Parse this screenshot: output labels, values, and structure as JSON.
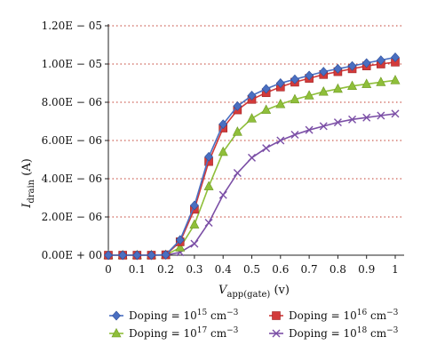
{
  "chart_data": {
    "type": "line",
    "xlabel": {
      "main": "V",
      "sub": "app(gate)",
      "unit": " (v)"
    },
    "ylabel": {
      "main": "I",
      "sub": "drain",
      "unit": " (A)"
    },
    "xlim": [
      0,
      1
    ],
    "ylim": [
      0,
      1.2e-05
    ],
    "x_ticks": [
      "0",
      "0.1",
      "0.2",
      "0.3",
      "0.4",
      "0.5",
      "0.6",
      "0.7",
      "0.8",
      "0.9",
      "1"
    ],
    "y_ticks": [
      "0.00E + 00",
      "2.00E − 06",
      "4.00E − 06",
      "6.00E − 06",
      "8.00E − 06",
      "1.00E − 05",
      "1.20E − 05"
    ],
    "grid": "horizontal dotted",
    "legend_position": "bottom",
    "x": [
      0,
      0.05,
      0.1,
      0.15,
      0.2,
      0.25,
      0.3,
      0.35,
      0.4,
      0.45,
      0.5,
      0.55,
      0.6,
      0.65,
      0.7,
      0.75,
      0.8,
      0.85,
      0.9,
      0.95,
      1.0
    ],
    "series": [
      {
        "name": "Doping = 10",
        "exp": "15",
        "unit": " cm",
        "unit_exp": "−3",
        "color": "#4a6fc1",
        "marker": "diamond",
        "values": [
          0,
          0,
          0,
          0,
          2e-08,
          8e-07,
          2.6e-06,
          5.15e-06,
          6.85e-06,
          7.8e-06,
          8.35e-06,
          8.7e-06,
          9e-06,
          9.2e-06,
          9.4e-06,
          9.6e-06,
          9.75e-06,
          9.9e-06,
          1.005e-05,
          1.02e-05,
          1.035e-05
        ]
      },
      {
        "name": "Doping = 10",
        "exp": "16",
        "unit": " cm",
        "unit_exp": "−3",
        "color": "#d23a3a",
        "marker": "square",
        "values": [
          0,
          0,
          0,
          0,
          2e-08,
          7e-07,
          2.4e-06,
          4.9e-06,
          6.65e-06,
          7.6e-06,
          8.15e-06,
          8.5e-06,
          8.8e-06,
          9.05e-06,
          9.25e-06,
          9.45e-06,
          9.6e-06,
          9.75e-06,
          9.9e-06,
          1e-05,
          1.01e-05
        ]
      },
      {
        "name": "Doping = 10",
        "exp": "17",
        "unit": " cm",
        "unit_exp": "−3",
        "color": "#8fbf3a",
        "marker": "triangle",
        "values": [
          0,
          0,
          0,
          0,
          1e-08,
          4e-07,
          1.6e-06,
          3.6e-06,
          5.4e-06,
          6.45e-06,
          7.15e-06,
          7.6e-06,
          7.9e-06,
          8.15e-06,
          8.35e-06,
          8.55e-06,
          8.7e-06,
          8.85e-06,
          8.95e-06,
          9.05e-06,
          9.15e-06
        ]
      },
      {
        "name": "Doping = 10",
        "exp": "18",
        "unit": " cm",
        "unit_exp": "−3",
        "color": "#7b4fa6",
        "marker": "x",
        "values": [
          0,
          0,
          0,
          0,
          0,
          1.5e-07,
          6e-07,
          1.7e-06,
          3.15e-06,
          4.3e-06,
          5.1e-06,
          5.6e-06,
          6e-06,
          6.3e-06,
          6.55e-06,
          6.75e-06,
          6.95e-06,
          7.1e-06,
          7.2e-06,
          7.3e-06,
          7.4e-06
        ]
      }
    ]
  }
}
